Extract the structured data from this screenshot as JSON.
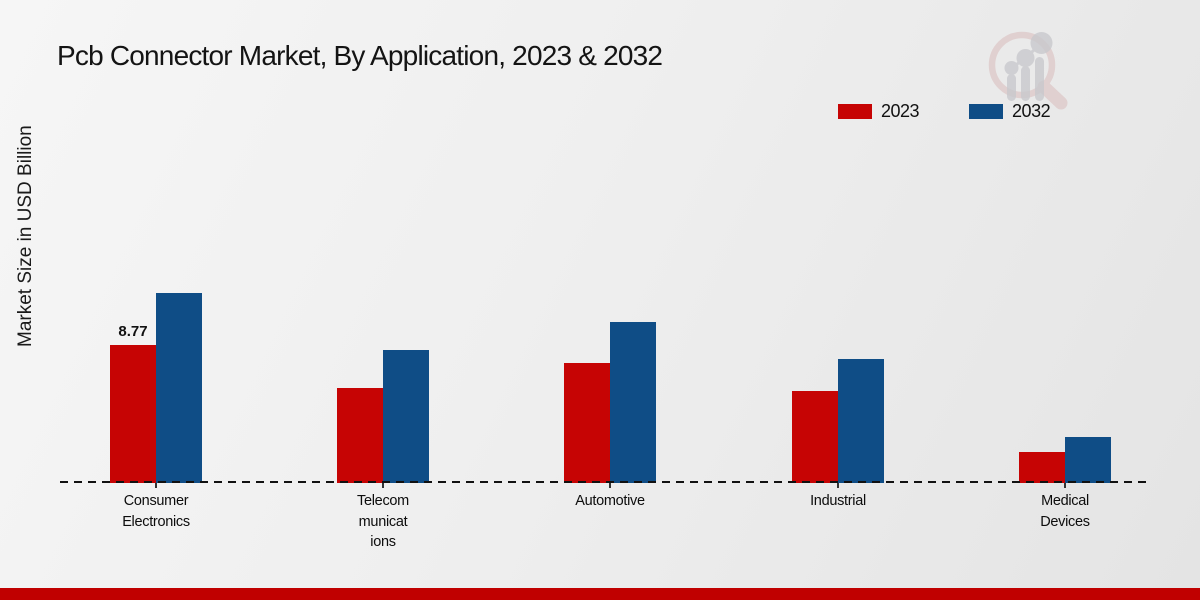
{
  "header": {
    "title": "Pcb Connector Market, By Application, 2023 & 2032"
  },
  "legend": {
    "items": [
      {
        "label": "2023",
        "color": "#c60404"
      },
      {
        "label": "2032",
        "color": "#0f4d86"
      }
    ]
  },
  "chart_data": {
    "type": "bar",
    "title": "Pcb Connector Market, By Application, 2023 & 2032",
    "xlabel": "",
    "ylabel": "Market Size in USD Billion",
    "categories": [
      "Consumer Electronics",
      "Telecommunications",
      "Automotive",
      "Industrial",
      "Medical Devices"
    ],
    "tick_display": [
      "Consumer\nElectronics",
      "Telecom\nmunicat\nions",
      "Automotive",
      "Industrial",
      "Medical\nDevices"
    ],
    "series": [
      {
        "name": "2023",
        "color": "#c60404",
        "values": [
          8.77,
          6.05,
          7.6,
          5.85,
          2.0
        ]
      },
      {
        "name": "2032",
        "color": "#0f4d86",
        "values": [
          12.1,
          8.45,
          10.2,
          7.9,
          2.95
        ]
      }
    ],
    "data_labels": [
      {
        "series": "2023",
        "category": "Consumer Electronics",
        "text": "8.77"
      }
    ],
    "ylim": [
      0,
      13
    ],
    "grid": false,
    "y_axis_ticks_visible": false,
    "legend_position": "top-right",
    "baseline_style": "dashed"
  },
  "branding": {
    "logo_icon": "magnifier-bar-chart-logo",
    "accent_bar_color": "#c00000",
    "logo_ring_color": "#dcc4c4",
    "logo_bar_color": "#c8c8cc"
  }
}
